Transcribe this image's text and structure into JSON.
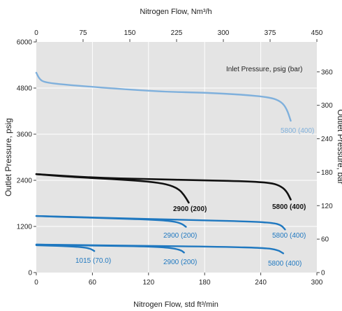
{
  "chart_data": {
    "type": "line",
    "title_top": "Nitrogen Flow, Nm³/h",
    "xlabel": "Nitrogen Flow, std ft³/min",
    "ylabel_left": "Outlet Pressure, psig",
    "ylabel_right": "Outlet Pressure, bar",
    "legend_title": "Inlet Pressure, psig (bar)",
    "grid": true,
    "xlim": [
      0,
      300
    ],
    "ylim": [
      0,
      6000
    ],
    "x_ticks": [
      "0",
      "60",
      "120",
      "180",
      "240",
      "300"
    ],
    "y_ticks": [
      "0",
      "1200",
      "2400",
      "3600",
      "4800",
      "6000"
    ],
    "top_ticks": [
      "0",
      "75",
      "150",
      "225",
      "300",
      "375",
      "450"
    ],
    "right_ticks": [
      "0",
      "60",
      "120",
      "180",
      "240",
      "300",
      "360"
    ],
    "colors": {
      "plot_bg": "#e4e4e4",
      "light_blue": "#7fb0dc",
      "black": "#111111",
      "blue": "#1f78c0"
    },
    "series": [
      {
        "label": "5800 (400)",
        "color": "light_blue",
        "points": [
          [
            0,
            5200
          ],
          [
            3,
            5050
          ],
          [
            8,
            4950
          ],
          [
            30,
            4890
          ],
          [
            60,
            4830
          ],
          [
            100,
            4760
          ],
          [
            140,
            4700
          ],
          [
            180,
            4680
          ],
          [
            220,
            4630
          ],
          [
            250,
            4560
          ],
          [
            262,
            4450
          ],
          [
            268,
            4250
          ],
          [
            272,
            3950
          ]
        ]
      },
      {
        "label": "2900 (200)",
        "color": "black",
        "points": [
          [
            0,
            2560
          ],
          [
            30,
            2500
          ],
          [
            60,
            2460
          ],
          [
            90,
            2420
          ],
          [
            120,
            2370
          ],
          [
            140,
            2300
          ],
          [
            152,
            2180
          ],
          [
            158,
            2020
          ],
          [
            163,
            1820
          ]
        ]
      },
      {
        "label": "5800 (400)",
        "color": "black",
        "points": [
          [
            0,
            2560
          ],
          [
            60,
            2470
          ],
          [
            120,
            2430
          ],
          [
            180,
            2400
          ],
          [
            230,
            2370
          ],
          [
            252,
            2330
          ],
          [
            262,
            2240
          ],
          [
            268,
            2100
          ],
          [
            272,
            1900
          ]
        ]
      },
      {
        "label": "2900 (200)",
        "color": "blue",
        "points": [
          [
            0,
            1470
          ],
          [
            40,
            1440
          ],
          [
            80,
            1410
          ],
          [
            120,
            1380
          ],
          [
            145,
            1340
          ],
          [
            155,
            1280
          ],
          [
            160,
            1190
          ]
        ]
      },
      {
        "label": "5800 (400)",
        "color": "blue",
        "points": [
          [
            0,
            1470
          ],
          [
            80,
            1420
          ],
          [
            160,
            1370
          ],
          [
            230,
            1330
          ],
          [
            254,
            1290
          ],
          [
            262,
            1230
          ],
          [
            266,
            1120
          ]
        ]
      },
      {
        "label": "1015 (70.0)",
        "color": "blue",
        "points": [
          [
            0,
            710
          ],
          [
            30,
            690
          ],
          [
            50,
            660
          ],
          [
            58,
            620
          ],
          [
            62,
            560
          ]
        ]
      },
      {
        "label": "2900 (200)",
        "color": "blue",
        "points": [
          [
            0,
            730
          ],
          [
            60,
            700
          ],
          [
            120,
            680
          ],
          [
            145,
            640
          ],
          [
            155,
            580
          ],
          [
            158,
            520
          ]
        ]
      },
      {
        "label": "5800 (400)",
        "color": "blue",
        "points": [
          [
            0,
            730
          ],
          [
            100,
            700
          ],
          [
            200,
            670
          ],
          [
            245,
            640
          ],
          [
            258,
            590
          ],
          [
            264,
            500
          ]
        ]
      }
    ]
  }
}
